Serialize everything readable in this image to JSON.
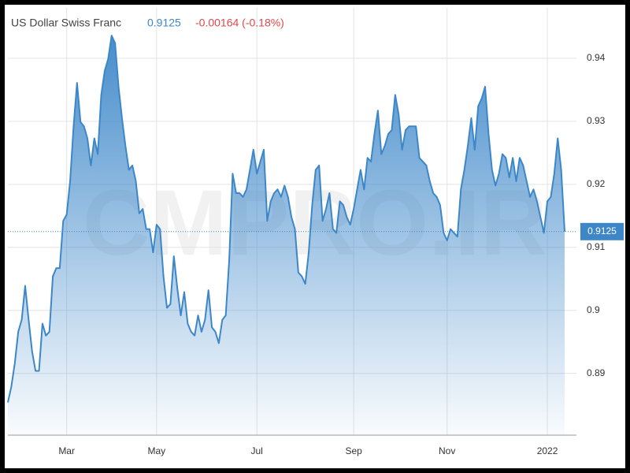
{
  "chart_data": {
    "type": "area",
    "title": "US Dollar Swiss Franc",
    "change": "-0.00164 (-0.18%)",
    "watermark": "CMPRO.IR",
    "categories": [
      null,
      null,
      null,
      null,
      null,
      null,
      null,
      null,
      null,
      null,
      null,
      null,
      null,
      null,
      null,
      null,
      null,
      "Mar",
      null,
      null,
      null,
      null,
      null,
      null,
      null,
      null,
      null,
      null,
      null,
      null,
      null,
      null,
      null,
      null,
      null,
      null,
      null,
      null,
      null,
      null,
      null,
      null,
      null,
      "May",
      null,
      null,
      null,
      null,
      null,
      null,
      null,
      null,
      null,
      null,
      null,
      null,
      null,
      null,
      null,
      null,
      null,
      null,
      null,
      null,
      null,
      null,
      null,
      null,
      null,
      null,
      null,
      null,
      "Jul",
      null,
      null,
      null,
      null,
      null,
      null,
      null,
      null,
      null,
      null,
      null,
      null,
      null,
      null,
      null,
      null,
      null,
      null,
      null,
      null,
      null,
      null,
      null,
      null,
      null,
      null,
      null,
      "Sep",
      null,
      null,
      null,
      null,
      null,
      null,
      null,
      null,
      null,
      null,
      null,
      null,
      null,
      null,
      null,
      null,
      null,
      null,
      null,
      null,
      null,
      null,
      null,
      null,
      null,
      null,
      "Nov",
      null,
      null,
      null,
      null,
      null,
      null,
      null,
      null,
      null,
      null,
      null,
      null,
      null,
      null,
      null,
      null,
      null,
      null,
      null,
      null,
      null,
      null,
      null,
      null,
      null,
      null,
      null,
      null,
      "2022",
      null,
      null,
      null,
      null,
      null
    ],
    "values": [
      0.8854,
      0.8879,
      0.8916,
      0.8966,
      0.8985,
      0.9039,
      0.8985,
      0.8935,
      0.8904,
      0.8904,
      0.8979,
      0.896,
      0.8966,
      0.9054,
      0.9067,
      0.9067,
      0.9142,
      0.9152,
      0.9205,
      0.9292,
      0.9361,
      0.9299,
      0.9292,
      0.9273,
      0.923,
      0.9273,
      0.9248,
      0.9342,
      0.938,
      0.9399,
      0.9436,
      0.9424,
      0.9355,
      0.9305,
      0.9261,
      0.9223,
      0.923,
      0.9205,
      0.9154,
      0.9161,
      0.9129,
      0.9129,
      0.9092,
      0.9136,
      0.9129,
      0.9054,
      0.9004,
      0.901,
      0.9086,
      0.9035,
      0.8992,
      0.9029,
      0.8979,
      0.8966,
      0.896,
      0.8992,
      0.8966,
      0.8985,
      0.9032,
      0.8973,
      0.8966,
      0.8948,
      0.8985,
      0.8992,
      0.9079,
      0.9217,
      0.9186,
      0.9186,
      0.918,
      0.9192,
      0.9223,
      0.9255,
      0.9217,
      0.9236,
      0.9255,
      0.9142,
      0.9173,
      0.9186,
      0.9192,
      0.918,
      0.9198,
      0.918,
      0.9148,
      0.9129,
      0.906,
      0.9054,
      0.9042,
      0.9092,
      0.9167,
      0.9223,
      0.923,
      0.9142,
      0.9161,
      0.9186,
      0.9129,
      0.9123,
      0.9173,
      0.9167,
      0.9148,
      0.9136,
      0.9161,
      0.9192,
      0.9223,
      0.9192,
      0.9242,
      0.9236,
      0.928,
      0.9317,
      0.9248,
      0.9261,
      0.928,
      0.9286,
      0.9342,
      0.9311,
      0.9255,
      0.9286,
      0.9292,
      0.9292,
      0.9292,
      0.9242,
      0.9236,
      0.923,
      0.9205,
      0.9186,
      0.918,
      0.9167,
      0.9123,
      0.9111,
      0.9129,
      0.9123,
      0.9117,
      0.9192,
      0.9223,
      0.9261,
      0.9305,
      0.9255,
      0.9324,
      0.9336,
      0.9355,
      0.928,
      0.9223,
      0.9198,
      0.9217,
      0.9248,
      0.9242,
      0.9211,
      0.9242,
      0.9205,
      0.9242,
      0.923,
      0.9205,
      0.918,
      0.9192,
      0.9173,
      0.9148,
      0.9123,
      0.9173,
      0.918,
      0.9217,
      0.9273,
      0.9223,
      0.9125
    ],
    "color": "#3d87c9",
    "ylim": [
      0.8802,
      0.948
    ],
    "yticks": [
      0.89,
      0.9,
      0.91,
      0.92,
      0.93,
      0.94
    ],
    "grid": true
  }
}
